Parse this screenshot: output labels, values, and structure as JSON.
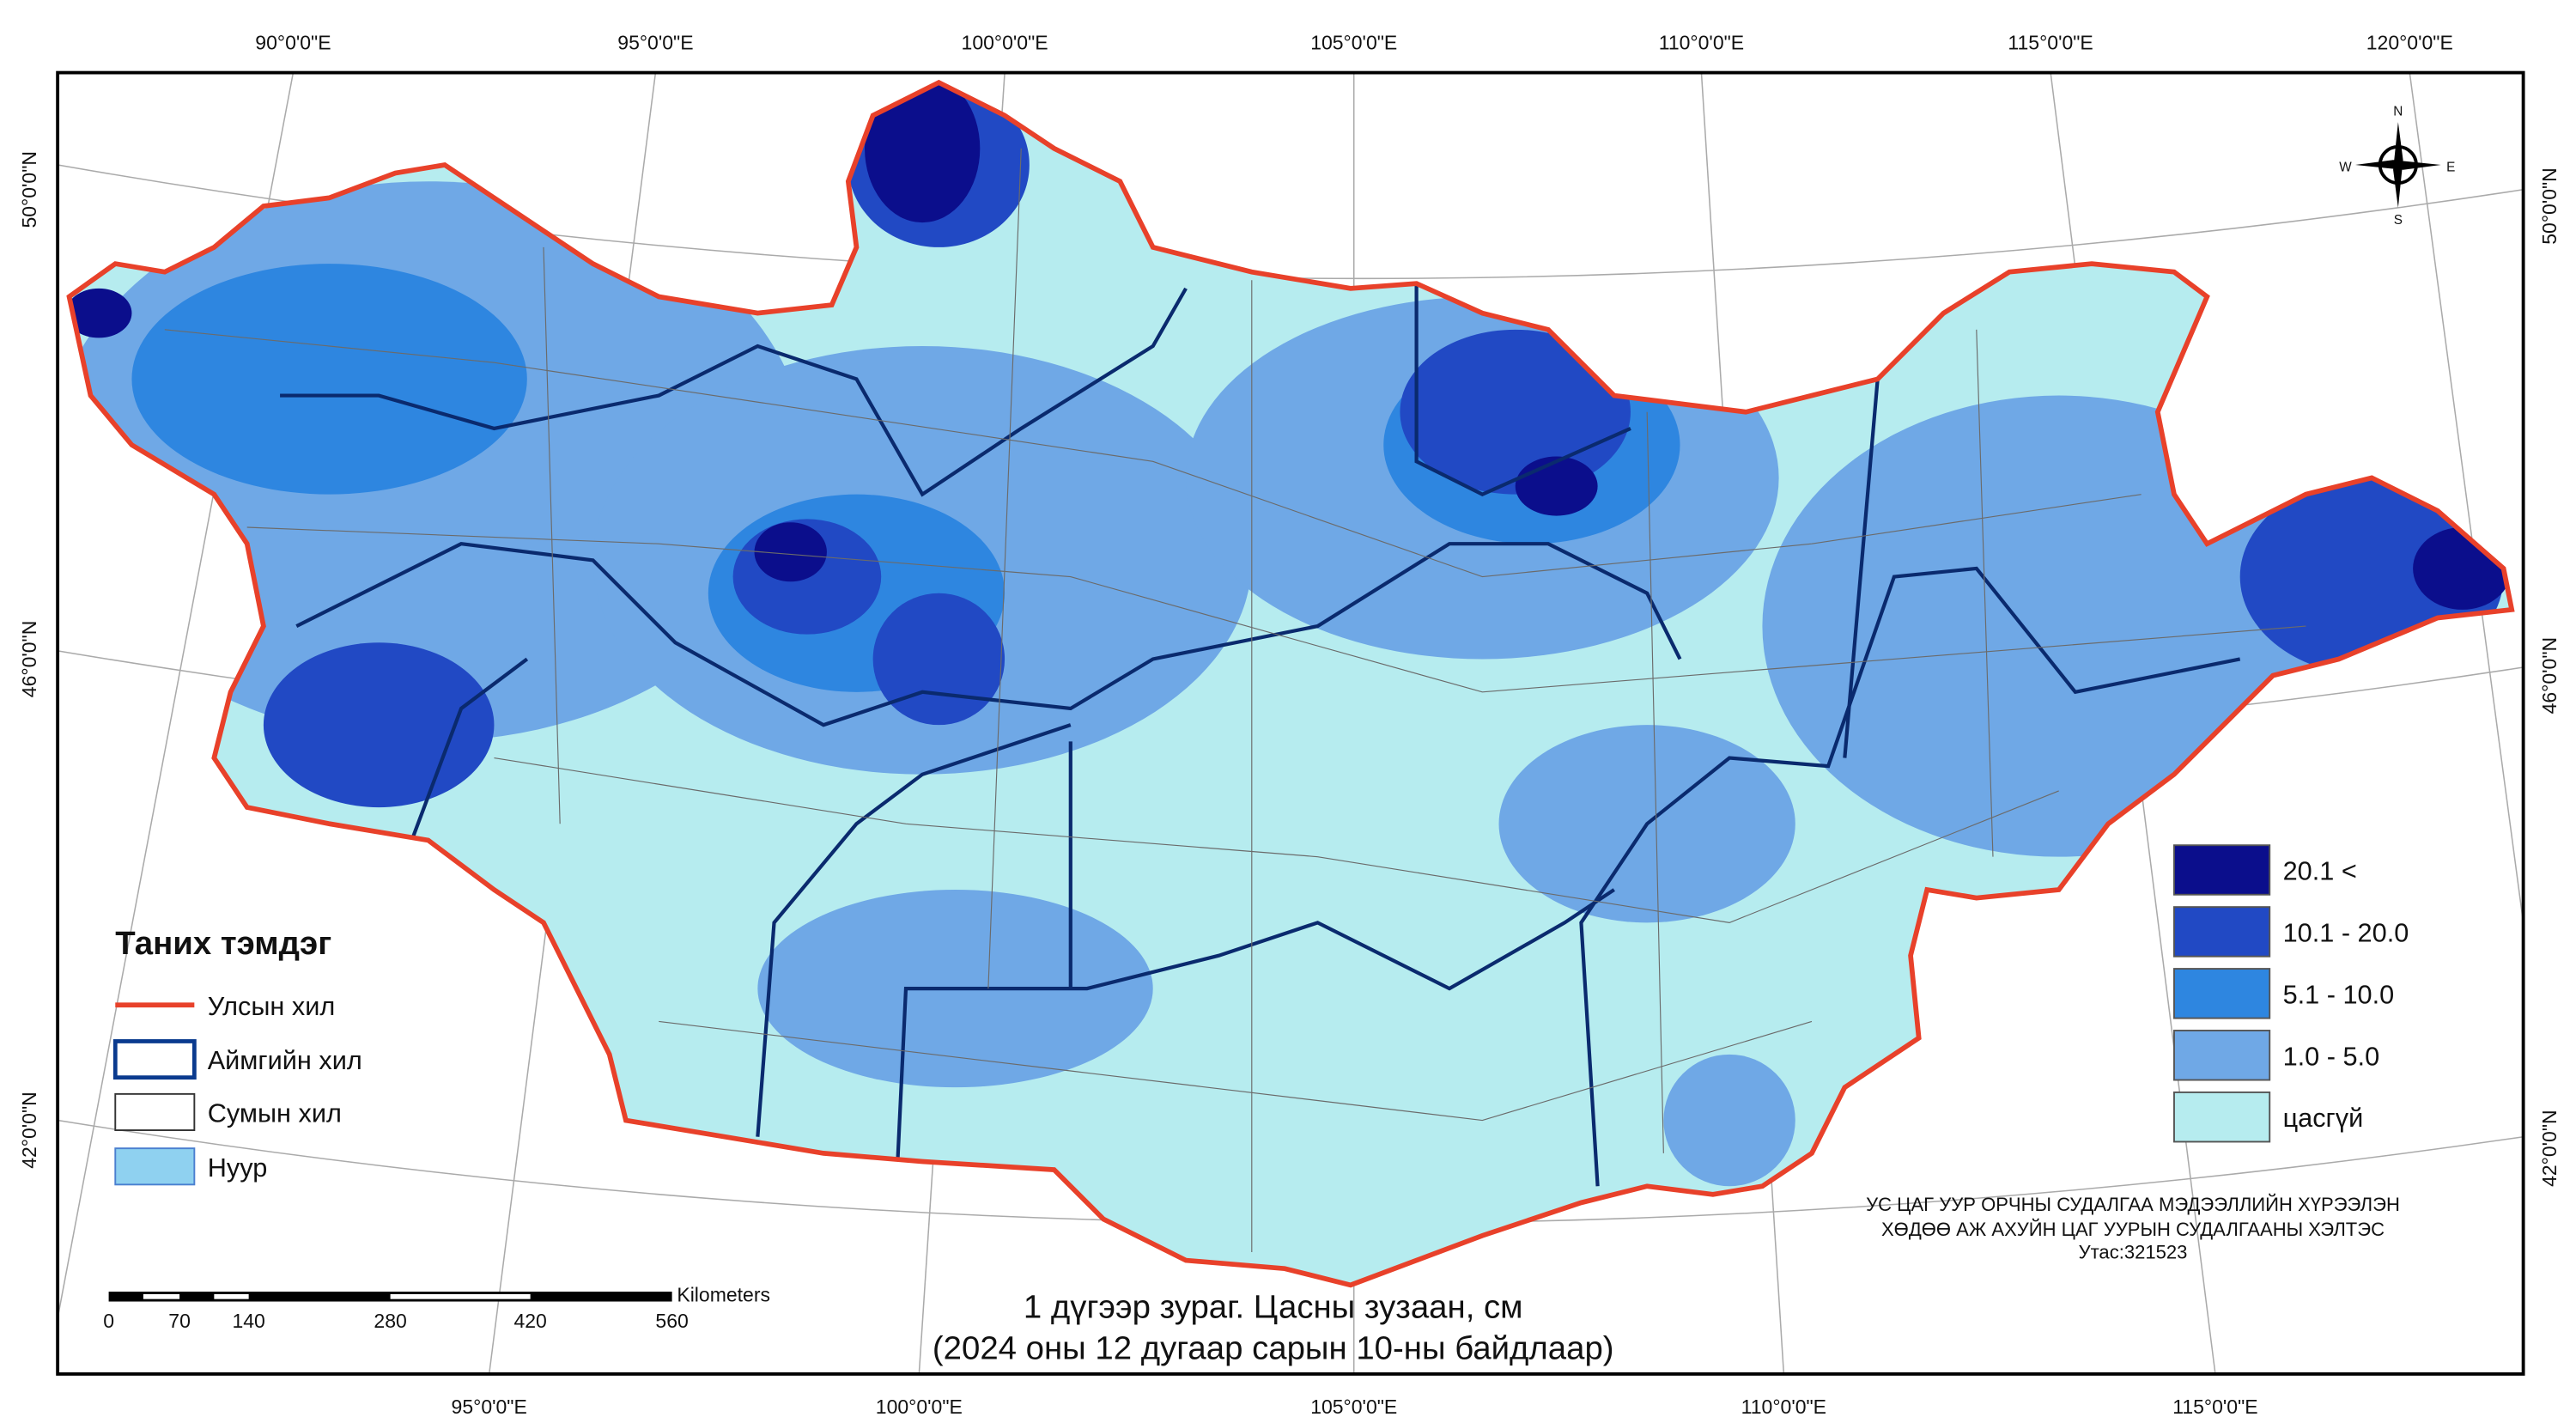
{
  "graticule": {
    "top": [
      "90°0'0\"E",
      "95°0'0\"E",
      "100°0'0\"E",
      "105°0'0\"E",
      "110°0'0\"E",
      "115°0'0\"E",
      "120°0'0\"E"
    ],
    "bottom": [
      "95°0'0\"E",
      "100°0'0\"E",
      "105°0'0\"E",
      "110°0'0\"E",
      "115°0'0\"E"
    ],
    "left": [
      "50°0'0\"N",
      "46°0'0\"N",
      "42°0'0\"N"
    ],
    "right": [
      "50°0'0\"N",
      "46°0'0\"N",
      "42°0'0\"N"
    ]
  },
  "compass": [
    "N",
    "E",
    "S",
    "W"
  ],
  "legend": {
    "title": "Таних тэмдэг",
    "items": [
      "Улсын хил",
      "Аймгийн хил",
      "Сумын хил",
      "Нуур"
    ]
  },
  "snow_classes": [
    "20.1 <",
    "10.1 - 20.0",
    "5.1 - 10.0",
    "1.0 - 5.0",
    "цасгүй"
  ],
  "credits": [
    "УС ЦАГ УУР ОРЧНЫ СУДАЛГАА МЭДЭЭЛЛИЙН ХҮРЭЭЛЭН",
    "ХӨДӨӨ АЖ АХУЙН ЦАГ УУРЫН СУДАЛГААНЫ ХЭЛТЭС",
    "Утас:321523"
  ],
  "scale_bar": {
    "unit": "Kilometers",
    "labels": [
      "0",
      "70",
      "140",
      "280",
      "420",
      "560"
    ]
  },
  "title": [
    "1 дүгээр зураг. Цасны зузаан, см",
    "(2024 оны 12 дугаар сарын 10-ны байдлаар)"
  ]
}
